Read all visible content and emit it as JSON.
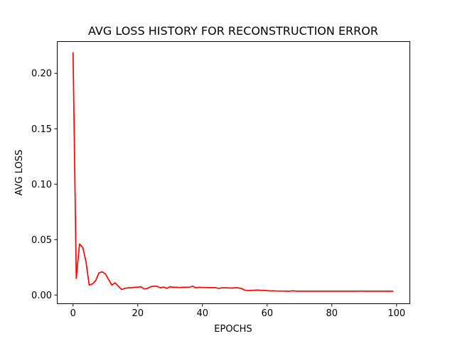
{
  "chart_data": {
    "type": "line",
    "title": "AVG LOSS HISTORY FOR RECONSTRUCTION ERROR",
    "xlabel": "EPOCHS",
    "ylabel": "AVG LOSS",
    "xlim": [
      -5,
      104
    ],
    "ylim": [
      -0.0075,
      0.229
    ],
    "xticks": [
      0,
      20,
      40,
      60,
      80,
      100
    ],
    "xtick_labels": [
      "0",
      "20",
      "40",
      "60",
      "80",
      "100"
    ],
    "yticks": [
      0.0,
      0.05,
      0.1,
      0.15,
      0.2
    ],
    "ytick_labels": [
      "0.00",
      "0.05",
      "0.10",
      "0.15",
      "0.20"
    ],
    "grid": false,
    "series": [
      {
        "color": "#ff0000",
        "x": [
          0,
          1,
          2,
          3,
          4,
          5,
          6,
          7,
          8,
          9,
          10,
          11,
          12,
          13,
          14,
          15,
          16,
          17,
          18,
          19,
          20,
          21,
          22,
          23,
          24,
          25,
          26,
          27,
          28,
          29,
          30,
          31,
          32,
          33,
          34,
          35,
          36,
          37,
          38,
          39,
          40,
          41,
          42,
          43,
          44,
          45,
          46,
          47,
          48,
          49,
          50,
          51,
          52,
          53,
          54,
          55,
          56,
          57,
          58,
          59,
          60,
          61,
          62,
          63,
          64,
          65,
          66,
          67,
          68,
          69,
          70,
          71,
          72,
          73,
          74,
          75,
          76,
          77,
          78,
          79,
          80,
          81,
          82,
          83,
          84,
          85,
          86,
          87,
          88,
          89,
          90,
          91,
          92,
          93,
          94,
          95,
          96,
          97,
          98,
          99
        ],
        "y": [
          0.219,
          0.015,
          0.046,
          0.043,
          0.03,
          0.009,
          0.01,
          0.013,
          0.02,
          0.021,
          0.019,
          0.014,
          0.009,
          0.011,
          0.008,
          0.005,
          0.006,
          0.0065,
          0.0065,
          0.007,
          0.007,
          0.0075,
          0.0055,
          0.006,
          0.0075,
          0.008,
          0.0078,
          0.0065,
          0.0072,
          0.006,
          0.0075,
          0.007,
          0.007,
          0.0068,
          0.007,
          0.007,
          0.007,
          0.008,
          0.0065,
          0.007,
          0.0068,
          0.0068,
          0.0067,
          0.0067,
          0.0067,
          0.006,
          0.0065,
          0.0065,
          0.0064,
          0.0063,
          0.0065,
          0.0065,
          0.006,
          0.0045,
          0.004,
          0.0042,
          0.0043,
          0.0045,
          0.0042,
          0.0042,
          0.004,
          0.0037,
          0.0038,
          0.0036,
          0.0036,
          0.0036,
          0.0035,
          0.0035,
          0.0038,
          0.0035,
          0.0035,
          0.0035,
          0.0035,
          0.0035,
          0.0035,
          0.0035,
          0.0035,
          0.0035,
          0.0035,
          0.0035,
          0.0035,
          0.0035,
          0.0035,
          0.0035,
          0.0035,
          0.0035,
          0.0035,
          0.0035,
          0.0035,
          0.0036,
          0.0035,
          0.0035,
          0.0035,
          0.0035,
          0.0035,
          0.0035,
          0.0035,
          0.0035,
          0.0035,
          0.0035
        ]
      }
    ]
  }
}
